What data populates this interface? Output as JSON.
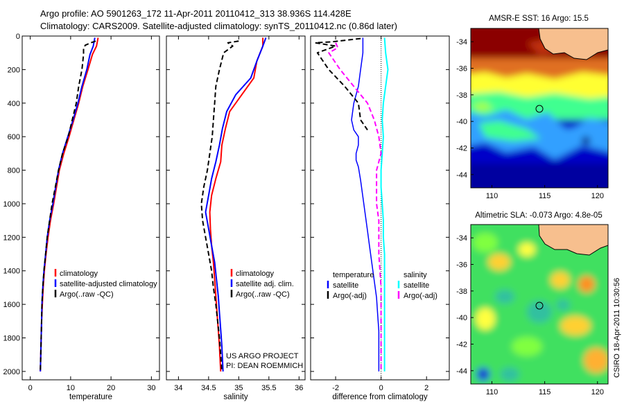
{
  "header": {
    "line1": "Argo profile: AO 5901263_172 11-Apr-2011 20110412_313 38.936S 114.428E",
    "line2": "Climatology: CARS2009. Satellite-adjusted climatology: synTS_20110412.nc (0.86d later)"
  },
  "chart_data": [
    {
      "type": "line",
      "panel": "temperature",
      "xlabel": "temperature",
      "ylabel": "",
      "xlim": [
        -2,
        32
      ],
      "ylim": [
        2050,
        0
      ],
      "y_reversed": true,
      "xticks": [
        0,
        10,
        20,
        30
      ],
      "yticks": [
        0,
        200,
        400,
        600,
        800,
        1000,
        1200,
        1400,
        1600,
        1800,
        2000
      ],
      "legend": [
        "climatology",
        "satellite-adjusted climatology",
        "Argo(..raw -QC)"
      ],
      "legend_position": "lower-right",
      "series": [
        {
          "name": "climatology",
          "color": "#ff0000",
          "dash": "",
          "width": 2,
          "points": [
            [
              16.8,
              10
            ],
            [
              16.4,
              60
            ],
            [
              15.4,
              110
            ],
            [
              14.3,
              200
            ],
            [
              13.0,
              300
            ],
            [
              12.0,
              400
            ],
            [
              10.8,
              500
            ],
            [
              9.6,
              600
            ],
            [
              8.3,
              700
            ],
            [
              7.2,
              800
            ],
            [
              6.5,
              900
            ],
            [
              5.8,
              1000
            ],
            [
              5.0,
              1100
            ],
            [
              4.4,
              1200
            ],
            [
              3.9,
              1300
            ],
            [
              3.5,
              1400
            ],
            [
              3.2,
              1500
            ],
            [
              3.0,
              1600
            ],
            [
              2.8,
              1700
            ],
            [
              2.7,
              1800
            ],
            [
              2.6,
              1900
            ],
            [
              2.5,
              2000
            ]
          ]
        },
        {
          "name": "satellite-adjusted climatology",
          "color": "#0000ff",
          "dash": "",
          "width": 2,
          "points": [
            [
              16.0,
              10
            ],
            [
              15.6,
              60
            ],
            [
              14.8,
              110
            ],
            [
              14.0,
              200
            ],
            [
              12.8,
              300
            ],
            [
              11.8,
              400
            ],
            [
              10.6,
              500
            ],
            [
              9.3,
              600
            ],
            [
              8.0,
              700
            ],
            [
              7.0,
              800
            ],
            [
              6.3,
              900
            ],
            [
              5.6,
              1000
            ],
            [
              4.8,
              1100
            ],
            [
              4.2,
              1200
            ],
            [
              3.8,
              1300
            ],
            [
              3.4,
              1400
            ],
            [
              3.1,
              1500
            ],
            [
              2.9,
              1600
            ],
            [
              2.8,
              1700
            ],
            [
              2.7,
              1800
            ],
            [
              2.6,
              1900
            ],
            [
              2.5,
              2000
            ]
          ]
        },
        {
          "name": "Argo(..raw -QC)",
          "color": "#000000",
          "dash": "7,4",
          "width": 2,
          "points": [
            [
              16.2,
              30
            ],
            [
              15.0,
              40
            ],
            [
              13.6,
              55
            ],
            [
              13.2,
              80
            ],
            [
              13.2,
              110
            ],
            [
              12.8,
              200
            ],
            [
              12.0,
              300
            ],
            [
              11.4,
              400
            ],
            [
              10.4,
              500
            ],
            [
              9.4,
              600
            ],
            [
              8.0,
              700
            ],
            [
              7.0,
              800
            ],
            [
              6.2,
              900
            ],
            [
              5.4,
              1000
            ],
            [
              4.8,
              1100
            ],
            [
              4.2,
              1200
            ],
            [
              3.8,
              1300
            ],
            [
              3.4,
              1400
            ],
            [
              3.1,
              1500
            ],
            [
              2.9,
              1600
            ],
            [
              2.8,
              1700
            ],
            [
              2.7,
              1800
            ],
            [
              2.6,
              1900
            ],
            [
              2.5,
              2000
            ]
          ]
        }
      ]
    },
    {
      "type": "line",
      "panel": "salinity",
      "xlabel": "salinity",
      "xlim": [
        33.8,
        36.1
      ],
      "ylim": [
        2050,
        0
      ],
      "y_reversed": true,
      "xticks": [
        34,
        34.5,
        35,
        35.5,
        36
      ],
      "legend": [
        "climatology",
        "satellite adj. clim.",
        "Argo(..raw -QC)"
      ],
      "legend_position": "lower-right",
      "annotation": [
        "US ARGO PROJECT",
        "PI: DEAN ROEMMICH"
      ],
      "series": [
        {
          "name": "climatology",
          "color": "#ff0000",
          "dash": "",
          "width": 2,
          "points": [
            [
              35.4,
              10
            ],
            [
              35.4,
              60
            ],
            [
              35.3,
              150
            ],
            [
              35.25,
              250
            ],
            [
              35.05,
              350
            ],
            [
              34.85,
              450
            ],
            [
              34.78,
              550
            ],
            [
              34.72,
              650
            ],
            [
              34.7,
              750
            ],
            [
              34.62,
              850
            ],
            [
              34.55,
              950
            ],
            [
              34.52,
              1050
            ],
            [
              34.53,
              1150
            ],
            [
              34.55,
              1250
            ],
            [
              34.58,
              1350
            ],
            [
              34.6,
              1450
            ],
            [
              34.62,
              1550
            ],
            [
              34.64,
              1650
            ],
            [
              34.66,
              1750
            ],
            [
              34.68,
              1850
            ],
            [
              34.7,
              2000
            ]
          ]
        },
        {
          "name": "satellite adj. clim.",
          "color": "#0000ff",
          "dash": "",
          "width": 2,
          "points": [
            [
              35.45,
              10
            ],
            [
              35.4,
              60
            ],
            [
              35.3,
              150
            ],
            [
              35.2,
              250
            ],
            [
              34.95,
              350
            ],
            [
              34.8,
              450
            ],
            [
              34.73,
              550
            ],
            [
              34.68,
              650
            ],
            [
              34.62,
              750
            ],
            [
              34.55,
              850
            ],
            [
              34.5,
              950
            ],
            [
              34.45,
              1050
            ],
            [
              34.5,
              1150
            ],
            [
              34.55,
              1250
            ],
            [
              34.6,
              1350
            ],
            [
              34.63,
              1450
            ],
            [
              34.66,
              1550
            ],
            [
              34.68,
              1650
            ],
            [
              34.7,
              1750
            ],
            [
              34.72,
              1850
            ],
            [
              34.74,
              2000
            ]
          ]
        },
        {
          "name": "Argo(..raw -QC)",
          "color": "#000000",
          "dash": "7,4",
          "width": 2,
          "points": [
            [
              35.0,
              30
            ],
            [
              34.82,
              40
            ],
            [
              34.9,
              60
            ],
            [
              34.75,
              100
            ],
            [
              34.68,
              200
            ],
            [
              34.62,
              300
            ],
            [
              34.6,
              400
            ],
            [
              34.58,
              500
            ],
            [
              34.56,
              600
            ],
            [
              34.52,
              700
            ],
            [
              34.48,
              800
            ],
            [
              34.42,
              900
            ],
            [
              34.38,
              1000
            ],
            [
              34.4,
              1100
            ],
            [
              34.45,
              1200
            ],
            [
              34.5,
              1300
            ],
            [
              34.55,
              1400
            ],
            [
              34.58,
              1500
            ],
            [
              34.62,
              1600
            ],
            [
              34.65,
              1700
            ],
            [
              34.68,
              1800
            ],
            [
              34.7,
              1900
            ],
            [
              34.72,
              2000
            ]
          ]
        }
      ]
    },
    {
      "type": "line",
      "panel": "difference",
      "xlabel": "difference from climatology",
      "xlim": [
        -3.1,
        3.0
      ],
      "ylim": [
        2050,
        0
      ],
      "y_reversed": true,
      "xticks": [
        -2,
        0,
        2
      ],
      "zero_line": true,
      "legend_titles": [
        "temperature",
        "salinity"
      ],
      "legend": [
        "satellite",
        "Argo(-adj)",
        "satellite",
        "Argo(-adj)"
      ],
      "legend_position": "lower-right",
      "series": [
        {
          "name": "temperature satellite",
          "color": "#0000ff",
          "dash": "",
          "width": 1.5,
          "points": [
            [
              -0.8,
              10
            ],
            [
              -0.8,
              100
            ],
            [
              -0.9,
              200
            ],
            [
              -1.0,
              300
            ],
            [
              -1.2,
              400
            ],
            [
              -1.3,
              500
            ],
            [
              -1.2,
              560
            ],
            [
              -1.1,
              580
            ],
            [
              -1.0,
              600
            ],
            [
              -1.0,
              650
            ],
            [
              -1.1,
              700
            ],
            [
              -1.1,
              740
            ],
            [
              -1.0,
              780
            ],
            [
              -0.9,
              860
            ],
            [
              -0.8,
              960
            ],
            [
              -0.7,
              1060
            ],
            [
              -0.6,
              1160
            ],
            [
              -0.5,
              1260
            ],
            [
              -0.4,
              1360
            ],
            [
              -0.3,
              1460
            ],
            [
              -0.2,
              1560
            ],
            [
              -0.15,
              1660
            ],
            [
              -0.1,
              1760
            ],
            [
              -0.1,
              1860
            ],
            [
              -0.1,
              2000
            ]
          ]
        },
        {
          "name": "temperature Argo(-adj)",
          "color": "#000000",
          "dash": "7,4",
          "width": 2,
          "points": [
            [
              -0.9,
              15
            ],
            [
              -2.2,
              35
            ],
            [
              -2.9,
              40
            ],
            [
              -2.0,
              60
            ],
            [
              -2.8,
              100
            ],
            [
              -2.3,
              200
            ],
            [
              -1.6,
              300
            ],
            [
              -1.0,
              400
            ],
            [
              -0.9,
              500
            ],
            [
              -0.6,
              560
            ]
          ]
        },
        {
          "name": "salinity satellite",
          "color": "#00ffff",
          "dash": "",
          "width": 2,
          "points": [
            [
              0.15,
              10
            ],
            [
              0.2,
              100
            ],
            [
              0.3,
              200
            ],
            [
              0.2,
              300
            ],
            [
              0.1,
              400
            ],
            [
              0.05,
              500
            ],
            [
              0.1,
              600
            ],
            [
              0.05,
              700
            ],
            [
              0.0,
              800
            ],
            [
              0.0,
              900
            ],
            [
              0.05,
              1000
            ],
            [
              0.1,
              1100
            ],
            [
              0.1,
              1200
            ],
            [
              0.15,
              1300
            ],
            [
              0.15,
              1400
            ],
            [
              0.15,
              1500
            ],
            [
              0.15,
              1600
            ],
            [
              0.15,
              1700
            ],
            [
              0.15,
              1800
            ],
            [
              0.15,
              1900
            ],
            [
              0.15,
              2000
            ]
          ]
        },
        {
          "name": "salinity Argo(-adj)",
          "color": "#ff00ff",
          "dash": "7,4",
          "width": 2,
          "points": [
            [
              -2.0,
              40
            ],
            [
              -1.9,
              70
            ],
            [
              -2.3,
              100
            ],
            [
              -1.8,
              200
            ],
            [
              -1.2,
              300
            ],
            [
              -0.6,
              400
            ],
            [
              -0.3,
              500
            ],
            [
              -0.1,
              600
            ],
            [
              0.0,
              700
            ],
            [
              -0.2,
              800
            ],
            [
              -0.2,
              900
            ],
            [
              -0.2,
              1000
            ],
            [
              -0.1,
              1100
            ],
            [
              -0.1,
              1200
            ],
            [
              -0.1,
              1300
            ],
            [
              -0.05,
              1400
            ],
            [
              0.0,
              1500
            ],
            [
              0.0,
              1600
            ],
            [
              0.0,
              1700
            ],
            [
              0.0,
              1800
            ],
            [
              0.0,
              1900
            ],
            [
              0.0,
              2000
            ]
          ]
        }
      ]
    },
    {
      "type": "heatmap",
      "panel": "sst_map",
      "title": "AMSR-E SST: 16 Argo: 15.5",
      "xlim": [
        108,
        121
      ],
      "ylim": [
        -45,
        -33
      ],
      "xticks": [
        110,
        115,
        120
      ],
      "yticks": [
        -34,
        -36,
        -38,
        -40,
        -42,
        -44
      ],
      "float_position": [
        114.43,
        -38.94
      ],
      "land_color": "#f7bf8e",
      "colors": {
        "band1": "#8b0000",
        "band2": "#e07020",
        "band3": "#ffff30",
        "band4": "#40ff90",
        "band5": "#30a0ff",
        "band6": "#0000c8"
      }
    },
    {
      "type": "heatmap",
      "panel": "sla_map",
      "title": "Altimetric SLA: -0.073 Argo: 4.8e-05",
      "xlim": [
        108,
        121
      ],
      "ylim": [
        -45,
        -33
      ],
      "xticks": [
        110,
        115,
        120
      ],
      "yticks": [
        -34,
        -36,
        -38,
        -40,
        -42,
        -44
      ],
      "float_position": [
        114.43,
        -38.94
      ],
      "land_color": "#f7bf8e",
      "colors": {
        "background": "#40e060",
        "positive": "#ffd030",
        "negative": "#30c0a0"
      }
    }
  ],
  "side_stamp": "CSIRO 18-Apr-2011 10:30:56"
}
